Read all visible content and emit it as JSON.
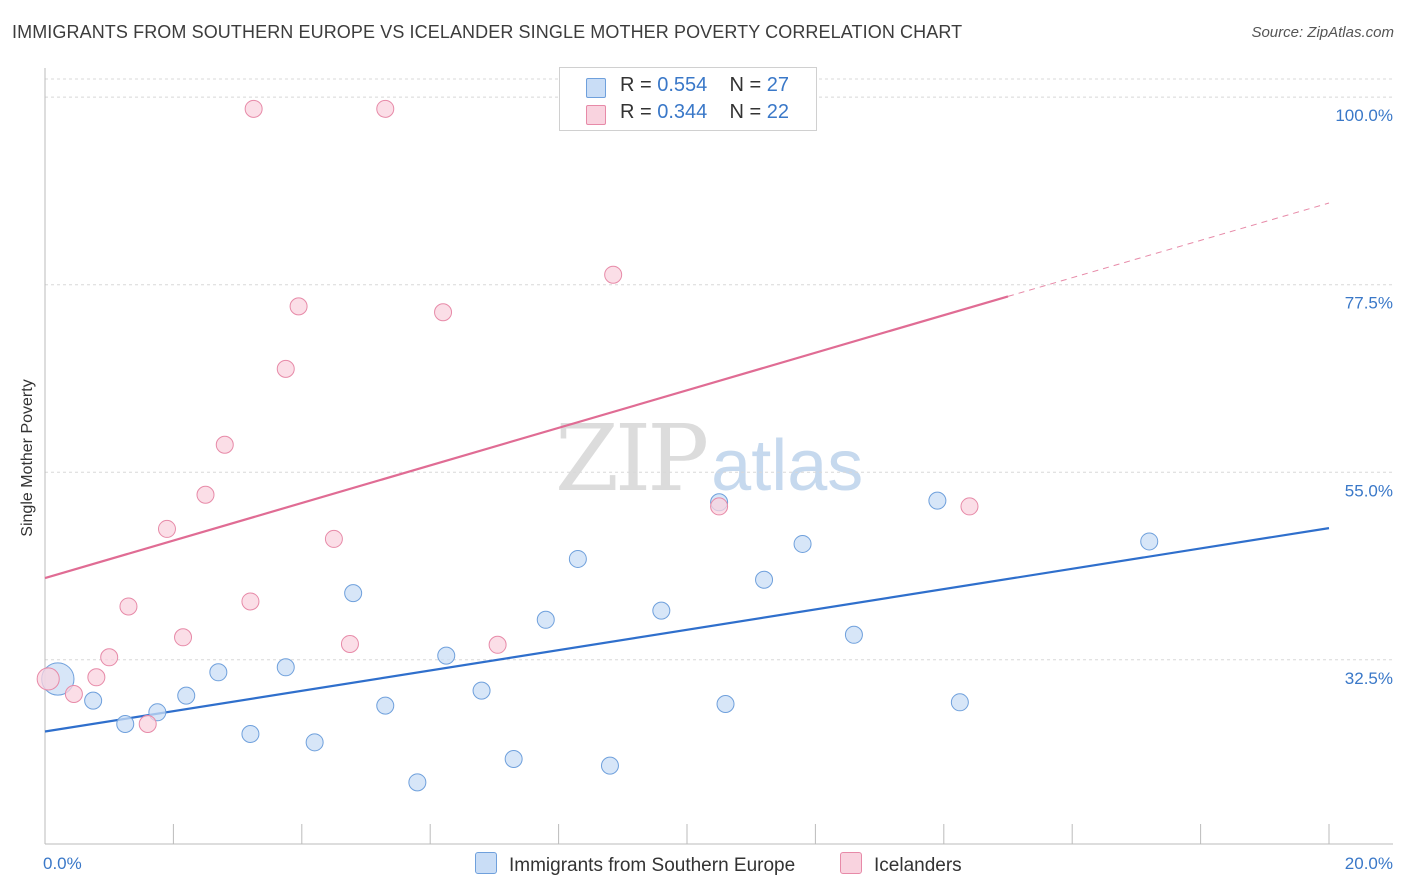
{
  "header": {
    "title": "IMMIGRANTS FROM SOUTHERN EUROPE VS ICELANDER SINGLE MOTHER POVERTY CORRELATION CHART",
    "source": "Source: ZipAtlas.com"
  },
  "watermark": {
    "zip": "ZIP",
    "atlas": "atlas"
  },
  "legend": {
    "rows": [
      {
        "r_label": "R = ",
        "r_value": "0.554",
        "n_label": "N = ",
        "n_value": "27",
        "color": "#b8d3f5",
        "border": "#6fa0dc"
      },
      {
        "r_label": "R = ",
        "r_value": "0.344",
        "n_label": "N = ",
        "n_value": "22",
        "color": "#f8c4d4",
        "border": "#e78aa8"
      }
    ]
  },
  "bottom_legend": [
    {
      "label": "Immigrants from Southern Europe",
      "color": "#b8d3f5",
      "border": "#6fa0dc"
    },
    {
      "label": "Icelanders",
      "color": "#f8c4d4",
      "border": "#e78aa8"
    }
  ],
  "chart_data": {
    "type": "scatter",
    "title": "IMMIGRANTS FROM SOUTHERN EUROPE VS ICELANDER SINGLE MOTHER POVERTY CORRELATION CHART",
    "xlabel": "",
    "ylabel": "Single Mother Poverty",
    "xlim": [
      0,
      20
    ],
    "ylim": [
      12.8,
      103.5
    ],
    "x_tick_labels": [
      {
        "value": 0,
        "label": "0.0%"
      },
      {
        "value": 20,
        "label": "20.0%"
      }
    ],
    "x_minor_ticks": [
      2,
      4,
      6,
      8,
      10,
      12,
      14,
      16,
      18,
      20
    ],
    "y_ticks": [
      {
        "value": 32.5,
        "label": "32.5%"
      },
      {
        "value": 55.0,
        "label": "55.0%"
      },
      {
        "value": 77.5,
        "label": "77.5%"
      },
      {
        "value": 100.0,
        "label": "100.0%"
      }
    ],
    "grid": "horizontal dashed",
    "series": [
      {
        "name": "Immigrants from Southern Europe",
        "color": "#6fa0dc",
        "fill": "#c9ddf6",
        "points": [
          [
            0.2,
            30.2,
            1.9
          ],
          [
            0.75,
            27.6,
            1
          ],
          [
            1.25,
            24.8,
            1
          ],
          [
            1.75,
            26.2,
            1
          ],
          [
            2.2,
            28.2,
            1
          ],
          [
            2.7,
            31.0,
            1
          ],
          [
            3.2,
            23.6,
            1
          ],
          [
            3.75,
            31.6,
            1
          ],
          [
            4.2,
            22.6,
            1
          ],
          [
            4.8,
            40.5,
            1
          ],
          [
            5.3,
            27.0,
            1
          ],
          [
            6.25,
            33.0,
            1
          ],
          [
            6.8,
            28.8,
            1
          ],
          [
            7.3,
            20.6,
            1
          ],
          [
            7.8,
            37.3,
            1
          ],
          [
            8.3,
            44.6,
            1
          ],
          [
            8.8,
            19.8,
            1
          ],
          [
            9.6,
            38.4,
            1
          ],
          [
            10.5,
            51.4,
            1
          ],
          [
            10.6,
            27.2,
            1
          ],
          [
            11.2,
            42.1,
            1
          ],
          [
            11.8,
            46.4,
            1
          ],
          [
            12.6,
            35.5,
            1
          ],
          [
            13.9,
            51.6,
            1
          ],
          [
            14.25,
            27.4,
            1
          ],
          [
            17.2,
            46.7,
            1
          ],
          [
            5.8,
            17.8,
            1
          ]
        ],
        "trend": {
          "x": [
            0,
            20
          ],
          "y": [
            23.9,
            48.3
          ]
        }
      },
      {
        "name": "Icelanders",
        "color": "#e78aa8",
        "fill": "#f9d3df",
        "points": [
          [
            0.05,
            30.2,
            1.3
          ],
          [
            0.45,
            28.4,
            1
          ],
          [
            0.8,
            30.4,
            1
          ],
          [
            1.0,
            32.8,
            1
          ],
          [
            1.3,
            38.9,
            1
          ],
          [
            1.6,
            24.8,
            1
          ],
          [
            1.9,
            48.2,
            1
          ],
          [
            2.15,
            35.2,
            1
          ],
          [
            2.5,
            52.3,
            1
          ],
          [
            2.8,
            58.3,
            1
          ],
          [
            3.2,
            39.5,
            1
          ],
          [
            3.25,
            98.6,
            1
          ],
          [
            3.75,
            67.4,
            1
          ],
          [
            3.95,
            74.9,
            1
          ],
          [
            4.5,
            47.0,
            1
          ],
          [
            4.75,
            34.4,
            1
          ],
          [
            5.3,
            98.6,
            1
          ],
          [
            6.2,
            74.2,
            1
          ],
          [
            7.05,
            34.3,
            1
          ],
          [
            8.85,
            78.7,
            1
          ],
          [
            10.5,
            50.9,
            1
          ],
          [
            14.4,
            50.9,
            1
          ]
        ],
        "trend": {
          "x": [
            0,
            15
          ],
          "y": [
            42.3,
            76.1
          ]
        },
        "trend_extension": {
          "x": [
            15,
            20
          ],
          "y": [
            76.1,
            87.3
          ]
        }
      }
    ]
  }
}
